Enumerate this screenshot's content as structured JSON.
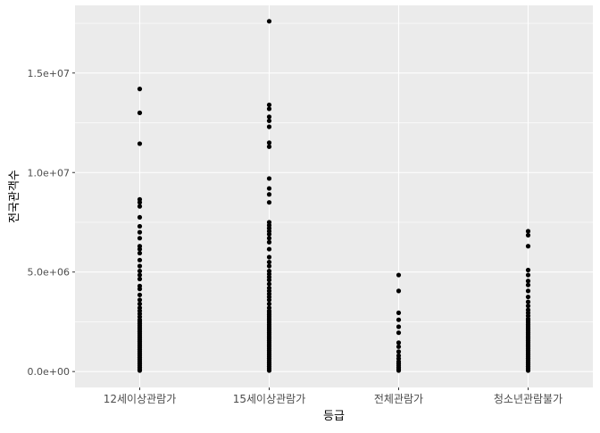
{
  "chart_data": {
    "type": "scatter",
    "xlabel": "등급",
    "ylabel": "전국관객수",
    "categories": [
      "12세이상관람가",
      "15세이상관람가",
      "전체관람가",
      "청소년관람불가"
    ],
    "yticks": [
      "0.0e+00",
      "5.0e+06",
      "1.0e+07",
      "1.5e+07"
    ],
    "ytick_values": [
      0,
      5000000,
      10000000,
      15000000
    ],
    "ylim": [
      -800000,
      18400000
    ],
    "grid": true,
    "background": "#ebebeb",
    "grid_color": "#ffffff",
    "point_color": "#000000",
    "series": [
      {
        "category": "12세이상관람가",
        "values": [
          14200000,
          13000000,
          11450000,
          8650000,
          8500000,
          8300000,
          7750000,
          7300000,
          7000000,
          6700000,
          6300000,
          6150000,
          5950000,
          5600000,
          5300000,
          5050000,
          4850000,
          4650000,
          4300000,
          4150000,
          3850000,
          3600000,
          3400000,
          3200000,
          3050000,
          2900000,
          2750000,
          2600000,
          2500000,
          2400000,
          2300000,
          2200000,
          2100000,
          2000000,
          1900000,
          1800000,
          1700000,
          1600000,
          1500000,
          1400000,
          1300000,
          1200000,
          1100000,
          1000000,
          900000,
          800000,
          700000,
          600000,
          500000,
          400000,
          300000,
          200000,
          100000,
          50000
        ]
      },
      {
        "category": "15세이상관람가",
        "values": [
          17600000,
          13400000,
          13200000,
          12800000,
          12600000,
          12300000,
          11500000,
          11300000,
          9700000,
          9200000,
          8900000,
          8500000,
          7500000,
          7350000,
          7200000,
          7050000,
          6900000,
          6700000,
          6500000,
          6150000,
          5750000,
          5500000,
          5300000,
          5050000,
          4900000,
          4750000,
          4600000,
          4400000,
          4200000,
          4050000,
          3900000,
          3750000,
          3600000,
          3400000,
          3200000,
          3050000,
          2950000,
          2850000,
          2750000,
          2650000,
          2550000,
          2450000,
          2350000,
          2250000,
          2150000,
          2050000,
          1950000,
          1850000,
          1750000,
          1650000,
          1550000,
          1450000,
          1350000,
          1250000,
          1150000,
          1050000,
          950000,
          850000,
          750000,
          650000,
          550000,
          450000,
          350000,
          250000,
          150000,
          50000
        ]
      },
      {
        "category": "전체관람가",
        "values": [
          4850000,
          4050000,
          2950000,
          2600000,
          2250000,
          1950000,
          1450000,
          1250000,
          1000000,
          800000,
          650000,
          500000,
          400000,
          300000,
          200000,
          120000,
          50000
        ]
      },
      {
        "category": "청소년관람불가",
        "values": [
          7050000,
          6850000,
          6300000,
          5100000,
          4850000,
          4550000,
          4350000,
          4050000,
          3750000,
          3500000,
          3300000,
          3100000,
          2950000,
          2800000,
          2650000,
          2550000,
          2450000,
          2350000,
          2250000,
          2150000,
          2050000,
          1950000,
          1850000,
          1750000,
          1650000,
          1550000,
          1450000,
          1350000,
          1250000,
          1150000,
          1050000,
          950000,
          850000,
          750000,
          650000,
          550000,
          450000,
          350000,
          250000,
          150000,
          50000
        ]
      }
    ]
  }
}
